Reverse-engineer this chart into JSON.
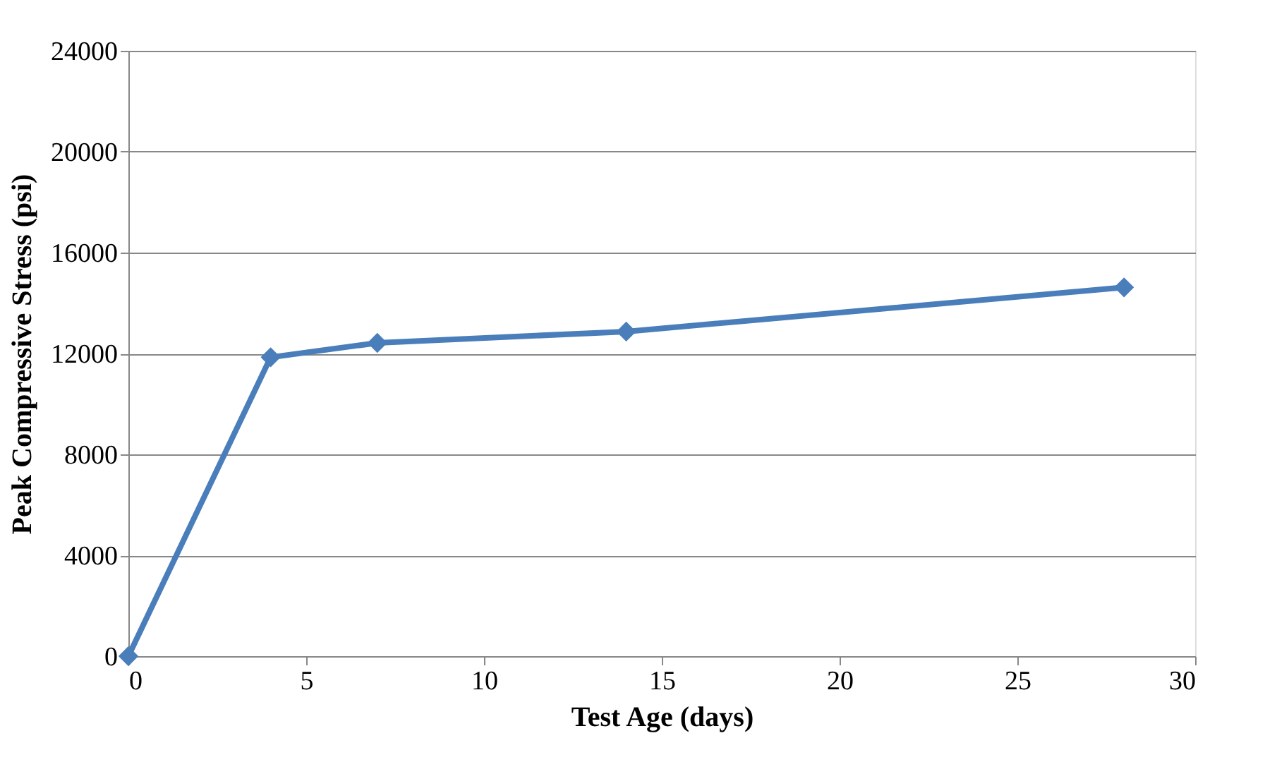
{
  "chart_data": {
    "type": "line",
    "xlabel": "Test Age (days)",
    "ylabel": "Peak Compressive Stress (psi)",
    "x": [
      0,
      4,
      7,
      14,
      28
    ],
    "series": [
      {
        "color": "#4a7ebb",
        "values": [
          0,
          11850,
          12420,
          12870,
          14620
        ]
      }
    ],
    "xlim": [
      0,
      30
    ],
    "xticks": [
      0,
      5,
      10,
      15,
      20,
      25,
      30
    ],
    "ylim": [
      0,
      24000
    ],
    "yticks": [
      0,
      4000,
      8000,
      12000,
      16000,
      20000,
      24000
    ],
    "grid": "y",
    "marker": "diamond",
    "line_style": "solid"
  }
}
